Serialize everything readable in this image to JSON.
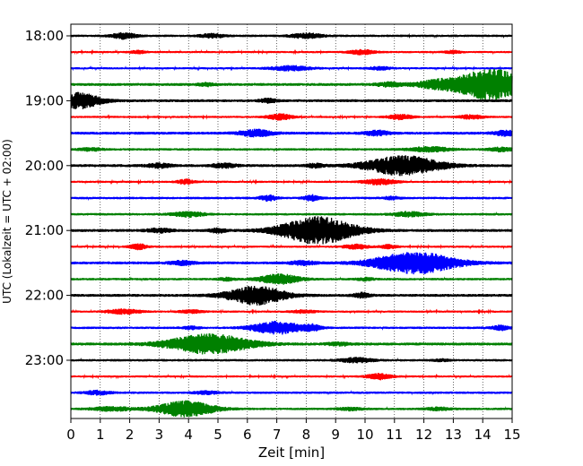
{
  "chart_data": {
    "type": "line",
    "title": "",
    "xlabel": "Zeit  [min]",
    "ylabel": "UTC (Lokalzeit = UTC + 02:00)",
    "xlim": [
      0,
      15
    ],
    "x_ticks": [
      "0",
      "1",
      "2",
      "3",
      "4",
      "5",
      "6",
      "7",
      "8",
      "9",
      "10",
      "11",
      "12",
      "13",
      "14",
      "15"
    ],
    "y_tick_labels": [
      {
        "trace": 0,
        "label": "18:00"
      },
      {
        "trace": 4,
        "label": "19:00"
      },
      {
        "trace": 8,
        "label": "20:00"
      },
      {
        "trace": 12,
        "label": "21:00"
      },
      {
        "trace": 16,
        "label": "22:00"
      },
      {
        "trace": 20,
        "label": "23:00"
      }
    ],
    "grid": {
      "vertical_dotted": true
    },
    "color_cycle": [
      "#000000",
      "#ff0000",
      "#0000ff",
      "#008000"
    ],
    "series": [
      {
        "start": "18:00",
        "color": "#000000",
        "noise": 0.25,
        "events": [
          [
            1.8,
            0.6,
            0.3
          ],
          [
            4.8,
            0.4,
            0.3
          ],
          [
            8.0,
            0.5,
            0.4
          ]
        ]
      },
      {
        "start": "18:15",
        "color": "#ff0000",
        "noise": 0.22,
        "events": [
          [
            2.3,
            0.3,
            0.2
          ],
          [
            9.9,
            0.5,
            0.3
          ],
          [
            13.0,
            0.3,
            0.2
          ]
        ]
      },
      {
        "start": "18:30",
        "color": "#0000ff",
        "noise": 0.22,
        "events": [
          [
            7.5,
            0.5,
            0.5
          ],
          [
            10.5,
            0.3,
            0.3
          ]
        ]
      },
      {
        "start": "18:45",
        "color": "#008000",
        "noise": 0.3,
        "events": [
          [
            4.6,
            0.3,
            0.2
          ],
          [
            10.8,
            0.4,
            0.3
          ],
          [
            12.5,
            0.8,
            0.6
          ],
          [
            14.3,
            3.2,
            0.8
          ]
        ]
      },
      {
        "start": "19:00",
        "color": "#000000",
        "noise": 0.3,
        "events": [
          [
            0.3,
            1.6,
            0.5
          ],
          [
            6.7,
            0.4,
            0.2
          ]
        ]
      },
      {
        "start": "19:15",
        "color": "#ff0000",
        "noise": 0.22,
        "events": [
          [
            7.1,
            0.6,
            0.3
          ],
          [
            11.2,
            0.5,
            0.3
          ],
          [
            13.6,
            0.4,
            0.3
          ]
        ]
      },
      {
        "start": "19:30",
        "color": "#0000ff",
        "noise": 0.3,
        "events": [
          [
            6.3,
            0.7,
            0.4
          ],
          [
            10.4,
            0.5,
            0.3
          ],
          [
            14.8,
            0.5,
            0.3
          ]
        ]
      },
      {
        "start": "19:45",
        "color": "#008000",
        "noise": 0.25,
        "events": [
          [
            0.7,
            0.3,
            0.3
          ],
          [
            12.2,
            0.5,
            0.5
          ],
          [
            14.6,
            0.4,
            0.3
          ]
        ]
      },
      {
        "start": "20:00",
        "color": "#000000",
        "noise": 0.3,
        "events": [
          [
            3.0,
            0.4,
            0.3
          ],
          [
            5.2,
            0.4,
            0.3
          ],
          [
            8.3,
            0.4,
            0.2
          ],
          [
            11.3,
            2.0,
            0.9
          ]
        ]
      },
      {
        "start": "20:15",
        "color": "#ff0000",
        "noise": 0.22,
        "events": [
          [
            3.9,
            0.5,
            0.2
          ],
          [
            10.5,
            0.6,
            0.4
          ]
        ]
      },
      {
        "start": "20:30",
        "color": "#0000ff",
        "noise": 0.25,
        "events": [
          [
            6.7,
            0.6,
            0.2
          ],
          [
            8.2,
            0.6,
            0.2
          ],
          [
            10.9,
            0.3,
            0.2
          ]
        ]
      },
      {
        "start": "20:45",
        "color": "#008000",
        "noise": 0.25,
        "events": [
          [
            4.0,
            0.5,
            0.4
          ],
          [
            11.5,
            0.5,
            0.4
          ]
        ]
      },
      {
        "start": "21:00",
        "color": "#000000",
        "noise": 0.3,
        "events": [
          [
            3.0,
            0.4,
            0.3
          ],
          [
            5.0,
            0.4,
            0.2
          ],
          [
            8.4,
            2.8,
            0.9
          ]
        ]
      },
      {
        "start": "21:15",
        "color": "#ff0000",
        "noise": 0.22,
        "events": [
          [
            2.3,
            0.6,
            0.2
          ],
          [
            9.7,
            0.5,
            0.3
          ],
          [
            10.8,
            0.4,
            0.2
          ]
        ]
      },
      {
        "start": "21:30",
        "color": "#0000ff",
        "noise": 0.3,
        "events": [
          [
            3.8,
            0.4,
            0.3
          ],
          [
            7.9,
            0.4,
            0.3
          ],
          [
            11.7,
            2.2,
            1.0
          ]
        ]
      },
      {
        "start": "21:45",
        "color": "#008000",
        "noise": 0.25,
        "events": [
          [
            5.3,
            0.3,
            0.2
          ],
          [
            7.1,
            1.0,
            0.5
          ],
          [
            10.0,
            0.3,
            0.2
          ]
        ]
      },
      {
        "start": "22:00",
        "color": "#000000",
        "noise": 0.3,
        "events": [
          [
            6.3,
            1.9,
            0.7
          ],
          [
            9.9,
            0.5,
            0.2
          ]
        ]
      },
      {
        "start": "22:15",
        "color": "#ff0000",
        "noise": 0.22,
        "events": [
          [
            1.8,
            0.5,
            0.4
          ],
          [
            4.1,
            0.3,
            0.3
          ],
          [
            7.9,
            0.3,
            0.3
          ]
        ]
      },
      {
        "start": "22:30",
        "color": "#0000ff",
        "noise": 0.25,
        "events": [
          [
            4.1,
            0.3,
            0.2
          ],
          [
            7.0,
            1.3,
            0.6
          ],
          [
            8.2,
            0.6,
            0.2
          ],
          [
            14.6,
            0.5,
            0.2
          ]
        ]
      },
      {
        "start": "22:45",
        "color": "#008000",
        "noise": 0.3,
        "events": [
          [
            4.7,
            2.0,
            1.0
          ],
          [
            9.1,
            0.3,
            0.3
          ]
        ]
      },
      {
        "start": "23:00",
        "color": "#000000",
        "noise": 0.25,
        "events": [
          [
            9.7,
            0.5,
            0.4
          ],
          [
            12.6,
            0.2,
            0.2
          ]
        ]
      },
      {
        "start": "23:15",
        "color": "#ff0000",
        "noise": 0.22,
        "events": [
          [
            10.5,
            0.6,
            0.3
          ]
        ]
      },
      {
        "start": "23:30",
        "color": "#0000ff",
        "noise": 0.25,
        "events": [
          [
            0.9,
            0.4,
            0.3
          ],
          [
            4.6,
            0.3,
            0.3
          ]
        ]
      },
      {
        "start": "23:45",
        "color": "#008000",
        "noise": 0.25,
        "events": [
          [
            1.4,
            0.4,
            0.5
          ],
          [
            3.9,
            1.6,
            0.7
          ],
          [
            9.5,
            0.3,
            0.3
          ],
          [
            12.5,
            0.3,
            0.3
          ]
        ]
      }
    ]
  }
}
